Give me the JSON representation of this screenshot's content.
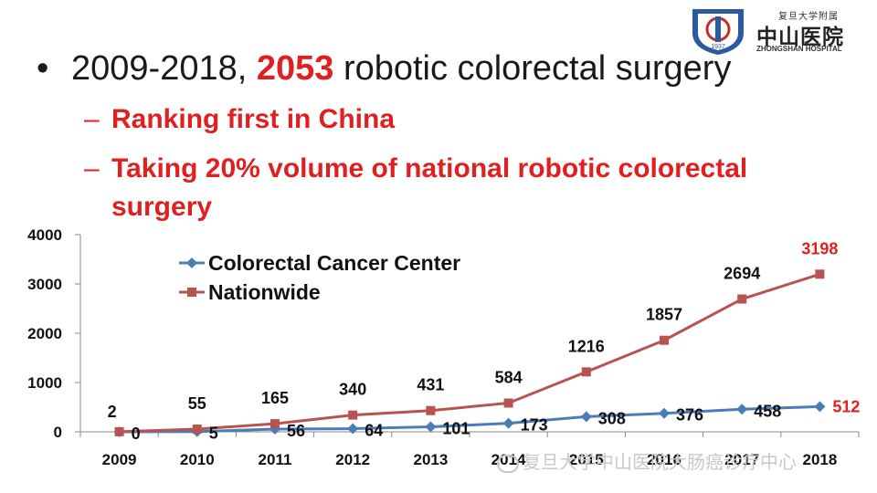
{
  "logo": {
    "cn_small": "复旦大学附属",
    "cn_big": "中山医院",
    "en": "ZHONGSHAN HOSPITAL",
    "shield_year": "1937"
  },
  "bullet": {
    "prefix": "2009-2018, ",
    "highlight": "2053",
    "suffix": " robotic colorectal surgery"
  },
  "subs": {
    "dash": "–",
    "item1": "Ranking first in China",
    "item2_line1": "Taking 20% volume of national robotic colorectal",
    "item2_line2": "surgery"
  },
  "watermark": "复旦大学中山医院大肠癌诊疗中心",
  "colors": {
    "center": "#4a7db8",
    "national": "#b85450",
    "highlight": "#e02020"
  },
  "chart_data": {
    "type": "line",
    "categories": [
      "2009",
      "2010",
      "2011",
      "2012",
      "2013",
      "2014",
      "2015",
      "2016",
      "2017",
      "2018"
    ],
    "series": [
      {
        "name": "Colorectal Cancer Center",
        "values": [
          0,
          5,
          56,
          64,
          101,
          173,
          308,
          376,
          458,
          512
        ]
      },
      {
        "name": "Nationwide",
        "values": [
          2,
          55,
          165,
          340,
          431,
          584,
          1216,
          1857,
          2694,
          3198
        ]
      }
    ],
    "ylim": [
      0,
      4000
    ],
    "yticks": [
      "0",
      "1000",
      "2000",
      "3000",
      "4000"
    ],
    "legend": "top-left",
    "grid": false
  }
}
